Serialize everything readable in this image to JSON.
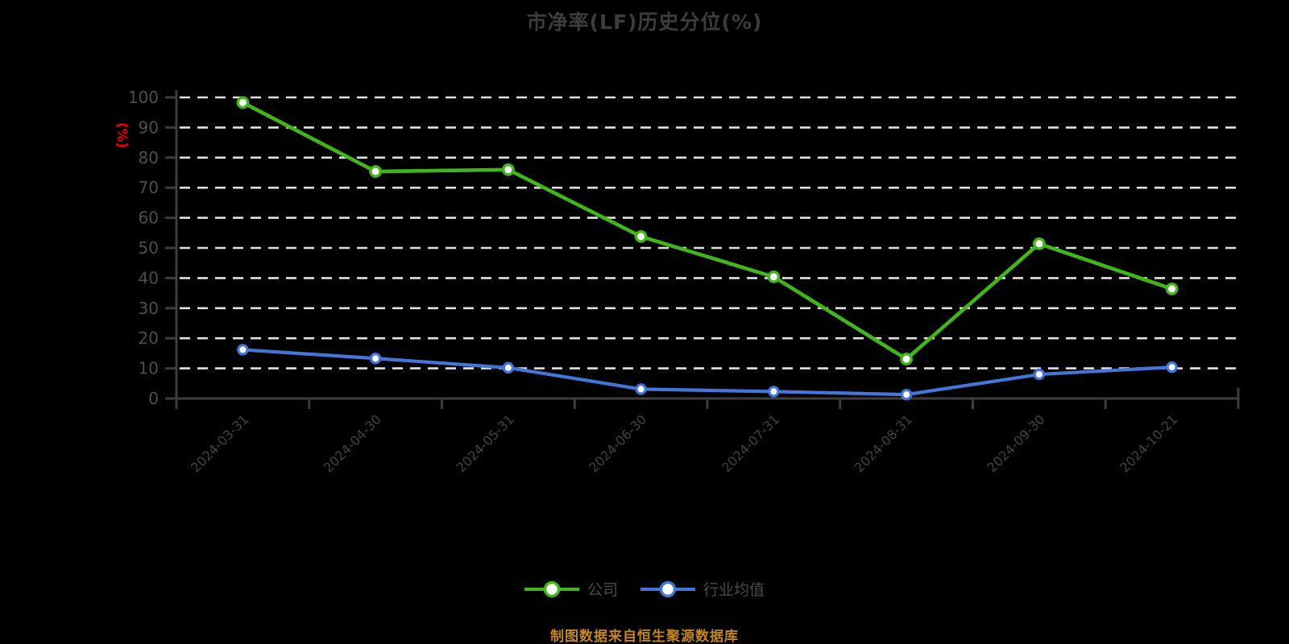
{
  "title": "市净率(LF)历史分位(%)",
  "source_note": "制图数据来自恒生聚源数据库",
  "colors": {
    "background": "#000000",
    "title": "#3c3c3c",
    "axis_line": "#3d3d3d",
    "grid_line": "#e2e2e2",
    "tick_label": "#4e4e4e",
    "x_label": "#424242",
    "y_unit_label": "#ee0000",
    "legend_text": "#4a4a4a",
    "source_text": "#c5861a",
    "marker_fill": "#ffffff",
    "company_series": "#43b51c",
    "industry_series": "#4476d9"
  },
  "chart_data": {
    "type": "line",
    "title": "市净率(LF)历史分位(%)",
    "xlabel": "",
    "ylabel": "(%)",
    "ylim": [
      0,
      100
    ],
    "y_ticks": [
      0,
      10,
      20,
      30,
      40,
      50,
      60,
      70,
      80,
      90,
      100
    ],
    "grid": true,
    "grid_style": "dashed",
    "legend_position": "bottom",
    "categories": [
      "2024-03-31",
      "2024-04-30",
      "2024-05-31",
      "2024-06-30",
      "2024-07-31",
      "2024-08-31",
      "2024-09-30",
      "2024-10-21"
    ],
    "series": [
      {
        "name": "公司",
        "color": "#43b51c",
        "values": [
          98.3,
          75.4,
          76.0,
          53.8,
          40.4,
          13.1,
          51.4,
          36.4
        ]
      },
      {
        "name": "行业均值",
        "color": "#4476d9",
        "values": [
          16.2,
          13.3,
          10.2,
          3.1,
          2.3,
          1.3,
          8.0,
          10.4
        ]
      }
    ]
  }
}
